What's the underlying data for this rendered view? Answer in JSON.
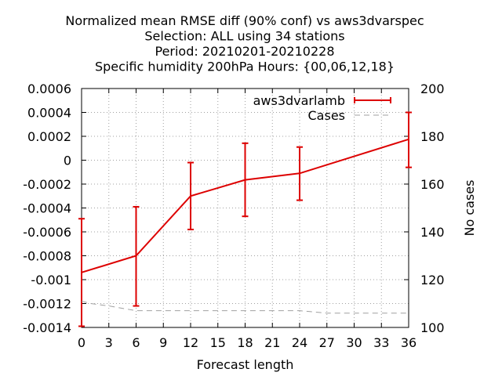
{
  "chart_data": {
    "type": "line",
    "title_lines": [
      "Normalized mean RMSE diff (90% conf) vs aws3dvarspec",
      "Selection: ALL using    34 stations",
      "Period: 20210201-20210228",
      "Specific humidity 200hPa   Hours: {00,06,12,18}"
    ],
    "xlabel": "Forecast length",
    "ylabel": "",
    "y2label": "No cases",
    "xlim": [
      0,
      36
    ],
    "ylim": [
      -0.0014,
      0.0006
    ],
    "y2lim": [
      100,
      200
    ],
    "xticks": [
      "0",
      "3",
      "6",
      "9",
      "12",
      "15",
      "18",
      "21",
      "24",
      "27",
      "30",
      "33",
      "36"
    ],
    "yticks": [
      "0.0006",
      "0.0004",
      "0.0002",
      "0",
      "-0.0002",
      "-0.0004",
      "-0.0006",
      "-0.0008",
      "-0.001",
      "-0.0012",
      "-0.0014"
    ],
    "y2ticks": [
      "200",
      "180",
      "160",
      "140",
      "120",
      "100"
    ],
    "grid": true,
    "legend_position": "top-right",
    "series": [
      {
        "name": "aws3dvarlamb",
        "axis": "y",
        "color": "#dd0000",
        "x": [
          0,
          6,
          12,
          18,
          24,
          36
        ],
        "y": [
          -0.00094,
          -0.0008,
          -0.0003,
          -0.000165,
          -0.00011,
          0.000175
        ],
        "err_low": [
          -0.00139,
          -0.00122,
          -0.00058,
          -0.00047,
          -0.000335,
          -6e-05
        ],
        "err_high": [
          -0.00049,
          -0.00039,
          -2e-05,
          0.000142,
          0.00011,
          0.0004
        ]
      },
      {
        "name": "Cases",
        "axis": "y2",
        "color": "#a0a0a0",
        "style": "dashed",
        "x": [
          0,
          1,
          3,
          6,
          9,
          12,
          15,
          18,
          21,
          24,
          27,
          30,
          33,
          36
        ],
        "y": [
          111,
          110,
          109,
          107,
          107,
          107,
          107,
          107,
          107,
          107,
          106,
          106,
          106,
          106
        ]
      }
    ]
  }
}
